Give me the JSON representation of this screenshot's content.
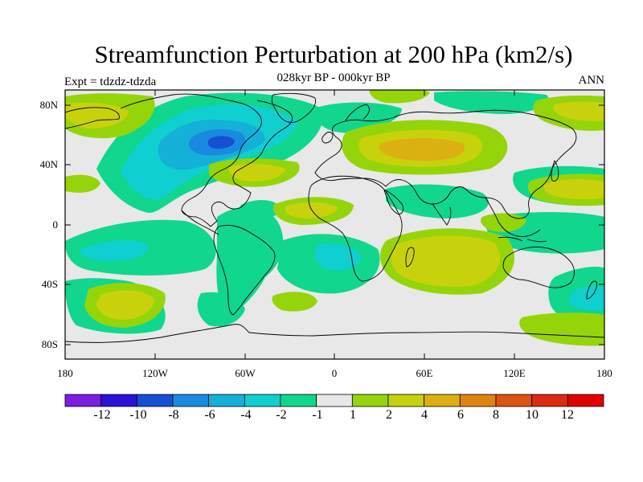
{
  "title": "Streamfunction Perturbation at 200 hPa (km2/s)",
  "subtitle": "028kyr BP - 000kyr BP",
  "left_label": "Expt = tdzdz-tdzda",
  "right_label": "ANN",
  "lat_labels": [
    "80N",
    "40N",
    "0",
    "40S",
    "80S"
  ],
  "lon_labels": [
    "180",
    "120W",
    "60W",
    "0",
    "60E",
    "120E",
    "180"
  ],
  "colorbar": {
    "labels": [
      "-12",
      "-10",
      "-8",
      "-6",
      "-4",
      "-2",
      "-1",
      "1",
      "2",
      "4",
      "6",
      "8",
      "10",
      "12"
    ],
    "colors": [
      "#7a1fe0",
      "#2a12d6",
      "#1550d2",
      "#1a8ae0",
      "#14b0d8",
      "#10cfd0",
      "#10d68e",
      "#e8e8e8",
      "#96d40a",
      "#c8d20c",
      "#dcb010",
      "#de8410",
      "#dc5410",
      "#dc2a10",
      "#e00000"
    ]
  },
  "map_field": {
    "description_values": "filled contour of streamfunction perturbation",
    "levels": [
      -12,
      -10,
      -8,
      -6,
      -4,
      -2,
      -1,
      1,
      2,
      4,
      6,
      8,
      10,
      12
    ]
  }
}
